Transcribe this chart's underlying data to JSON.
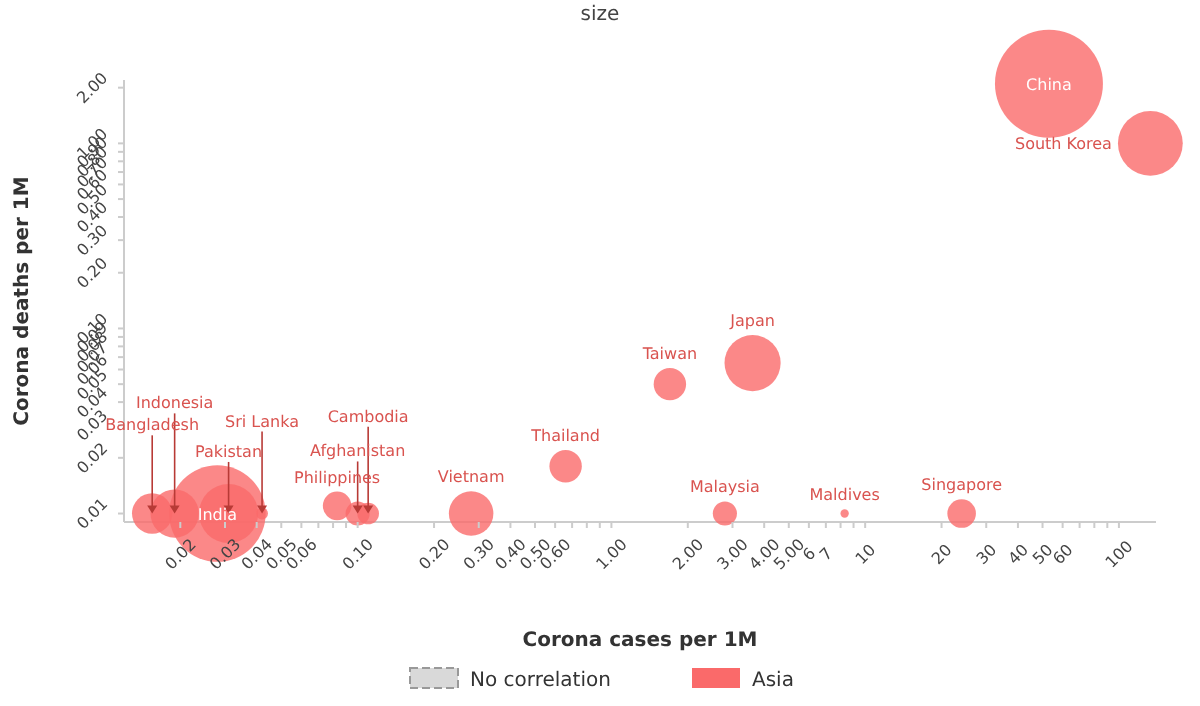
{
  "chart_data": {
    "type": "bubble",
    "title": "size",
    "xlabel": "Corona cases per 1M",
    "ylabel": "Corona deaths per 1M",
    "log": "xy",
    "legend": "bottom",
    "grid": false,
    "xlim": [
      0.012,
      140
    ],
    "xticks": [
      {
        "value": 0.02,
        "label": "0.02"
      },
      {
        "value": 0.03,
        "label": "0.03"
      },
      {
        "value": 0.04,
        "label": "0.04"
      },
      {
        "value": 0.05,
        "label": "0.05"
      },
      {
        "value": 0.06,
        "label": "0.06"
      },
      {
        "value": 0.07,
        "label": null
      },
      {
        "value": 0.08,
        "label": null
      },
      {
        "value": 0.09,
        "label": null
      },
      {
        "value": 0.1,
        "label": "0.10"
      },
      {
        "value": 0.2,
        "label": "0.20"
      },
      {
        "value": 0.3,
        "label": "0.30"
      },
      {
        "value": 0.4,
        "label": "0.40"
      },
      {
        "value": 0.5,
        "label": "0.50"
      },
      {
        "value": 0.6,
        "label": "0.60"
      },
      {
        "value": 0.7,
        "label": null
      },
      {
        "value": 0.8,
        "label": null
      },
      {
        "value": 0.9,
        "label": null
      },
      {
        "value": 1,
        "label": "1.00"
      },
      {
        "value": 2,
        "label": "2.00"
      },
      {
        "value": 3,
        "label": "3.00"
      },
      {
        "value": 4,
        "label": "4.00"
      },
      {
        "value": 5,
        "label": "5.00"
      },
      6,
      7,
      {
        "value": 8,
        "label": null
      },
      {
        "value": 9,
        "label": null
      },
      10,
      20,
      30,
      40,
      50,
      60,
      {
        "value": 70,
        "label": null
      },
      {
        "value": 80,
        "label": null
      },
      {
        "value": 90,
        "label": null
      },
      100
    ],
    "ylim": [
      0.009,
      2.2
    ],
    "yticks": [
      {
        "value": 0.01,
        "label": "0.01"
      },
      {
        "value": 0.02,
        "label": "0.02"
      },
      {
        "value": 0.03,
        "label": "0.03"
      },
      {
        "value": 0.04,
        "label": "0.04"
      },
      {
        "value": 0.05,
        "label": "0.05"
      },
      {
        "value": 0.06,
        "label": "0.06"
      },
      {
        "value": 0.07,
        "label": "0.07"
      },
      {
        "value": 0.08,
        "label": "0.08"
      },
      {
        "value": 0.09,
        "label": "0.09"
      },
      {
        "value": 0.1,
        "label": "0.10"
      },
      {
        "value": 0.2,
        "label": "0.20"
      },
      {
        "value": 0.3,
        "label": "0.30"
      },
      {
        "value": 0.4,
        "label": "0.40"
      },
      {
        "value": 0.5,
        "label": "0.50"
      },
      {
        "value": 0.6,
        "label": "0.60"
      },
      {
        "value": 0.7,
        "label": "0.70"
      },
      {
        "value": 0.8,
        "label": "0.80"
      },
      {
        "value": 0.9,
        "label": "0.90"
      },
      {
        "value": 1,
        "label": "1.00"
      },
      {
        "value": 2,
        "label": "2.00"
      }
    ],
    "series": [
      {
        "name": "No correlation",
        "type": "line",
        "line_style": "dashed",
        "color": "#d9d9d9"
      },
      {
        "name": "Asia",
        "color": "#fa6a6a",
        "x": [
          53,
          133,
          3.6,
          1.7,
          0.66,
          0.28,
          2.8,
          8.3,
          24,
          0.028,
          0.031,
          0.0155,
          0.019,
          0.042,
          0.083,
          0.1,
          0.11
        ],
        "values": [
          2.1,
          1.0,
          0.065,
          0.05,
          0.018,
          0.01,
          0.01,
          0.01,
          0.01,
          0.01,
          0.01,
          0.01,
          0.01,
          0.01,
          0.011,
          0.01,
          0.01
        ],
        "sizes": [
          1,
          0.36,
          0.27,
          0.09,
          0.09,
          0.17,
          0.05,
          0.006,
          0.07,
          0.8,
          0.3,
          0.14,
          0.2,
          0.012,
          0.07,
          0.05,
          0.04
        ]
      }
    ],
    "annotations": [
      {
        "text": "China",
        "x": 53,
        "y": 2.1
      },
      {
        "text": "South Korea",
        "x": 133,
        "y": 1.0
      },
      {
        "text": "Japan",
        "x": 3.6,
        "y": 0.065
      },
      {
        "text": "Taiwan",
        "x": 1.7,
        "y": 0.05
      },
      {
        "text": "Thailand",
        "x": 0.66,
        "y": 0.018
      },
      {
        "text": "Vietnam",
        "x": 0.28,
        "y": 0.01
      },
      {
        "text": "Malaysia",
        "x": 2.8,
        "y": 0.01
      },
      {
        "text": "Maldives",
        "x": 8.3,
        "y": 0.01
      },
      {
        "text": "Singapore",
        "x": 24,
        "y": 0.01
      },
      {
        "text": "India",
        "x": 0.028,
        "y": 0.01
      },
      {
        "text": "Pakistan",
        "x": 0.031,
        "y": 0.01
      },
      {
        "text": "Bangladesh",
        "x": 0.0155,
        "y": 0.01
      },
      {
        "text": "Indonesia",
        "x": 0.019,
        "y": 0.01
      },
      {
        "text": "Sri Lanka",
        "x": 0.042,
        "y": 0.01
      },
      {
        "text": "Philippines",
        "x": 0.083,
        "y": 0.011
      },
      {
        "text": "Afghanistan",
        "x": 0.1,
        "y": 0.01
      },
      {
        "text": "Cambodia",
        "x": 0.11,
        "y": 0.01
      }
    ]
  }
}
